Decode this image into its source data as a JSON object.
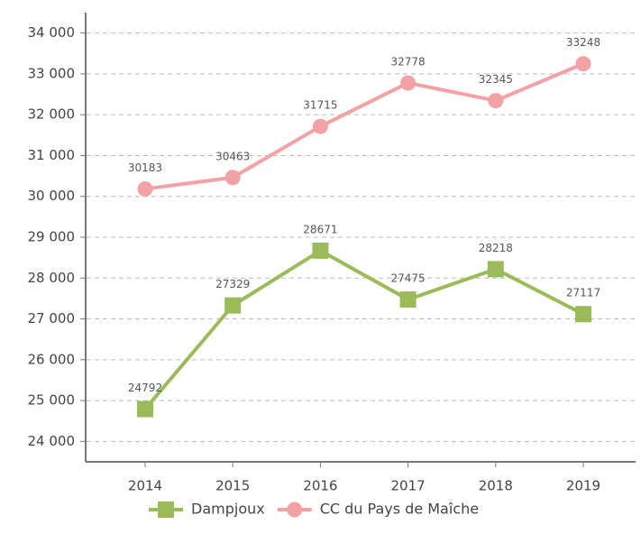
{
  "chart_data": {
    "type": "line",
    "categories": [
      "2014",
      "2015",
      "2016",
      "2017",
      "2018",
      "2019"
    ],
    "series": [
      {
        "name": "Dampjoux",
        "color": "#9bbb59",
        "marker": "square",
        "values": [
          24792,
          27329,
          28671,
          27475,
          28218,
          27117
        ]
      },
      {
        "name": "CC du Pays de Maîche",
        "color": "#f4a1a5",
        "marker": "circle",
        "values": [
          30183,
          30463,
          31715,
          32778,
          32345,
          33248
        ]
      }
    ],
    "ylim": [
      23500,
      34500
    ],
    "yticks": [
      {
        "value": 24000,
        "label": "24 000"
      },
      {
        "value": 25000,
        "label": "25 000"
      },
      {
        "value": 26000,
        "label": "26 000"
      },
      {
        "value": 27000,
        "label": "27 000"
      },
      {
        "value": 28000,
        "label": "28 000"
      },
      {
        "value": 29000,
        "label": "29 000"
      },
      {
        "value": 30000,
        "label": "30 000"
      },
      {
        "value": 31000,
        "label": "31 000"
      },
      {
        "value": 32000,
        "label": "32 000"
      },
      {
        "value": 33000,
        "label": "33 000"
      },
      {
        "value": 34000,
        "label": "34 000"
      }
    ],
    "grid": true,
    "legend": "bottom"
  }
}
